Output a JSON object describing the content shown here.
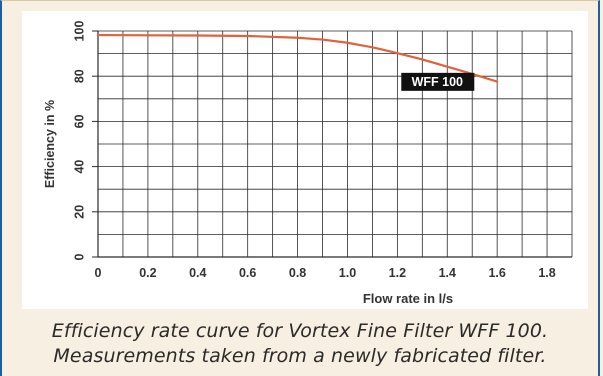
{
  "caption": {
    "line1": "Efficiency rate curve for Vortex Fine Filter WFF 100.",
    "line2": "Measurements taken from a newly fabricated filter."
  },
  "chart_data": {
    "type": "line",
    "title": "",
    "xlabel": "Flow rate in l/s",
    "ylabel": "Efficiency in %",
    "xlim": [
      0,
      1.9
    ],
    "ylim": [
      0,
      100
    ],
    "x_ticks": [
      "0",
      "0.2",
      "0.4",
      "0.6",
      "0.8",
      "1.0",
      "1.2",
      "1.4",
      "1.6",
      "1.8"
    ],
    "y_ticks": [
      "0",
      "20",
      "40",
      "60",
      "80",
      "100"
    ],
    "grid": true,
    "colors": {
      "line": "#e0623a",
      "grid": "#2a2a2a",
      "label_bg": "#111111",
      "label_text": "#ffffff"
    },
    "series": [
      {
        "name": "WFF 100",
        "x": [
          0.0,
          0.2,
          0.4,
          0.6,
          0.8,
          0.9,
          1.0,
          1.1,
          1.2,
          1.3,
          1.4,
          1.5,
          1.6
        ],
        "y": [
          98.2,
          98.1,
          98.0,
          97.8,
          97.0,
          96.2,
          94.8,
          92.8,
          90.2,
          87.4,
          84.2,
          81.0,
          77.6
        ]
      }
    ]
  }
}
